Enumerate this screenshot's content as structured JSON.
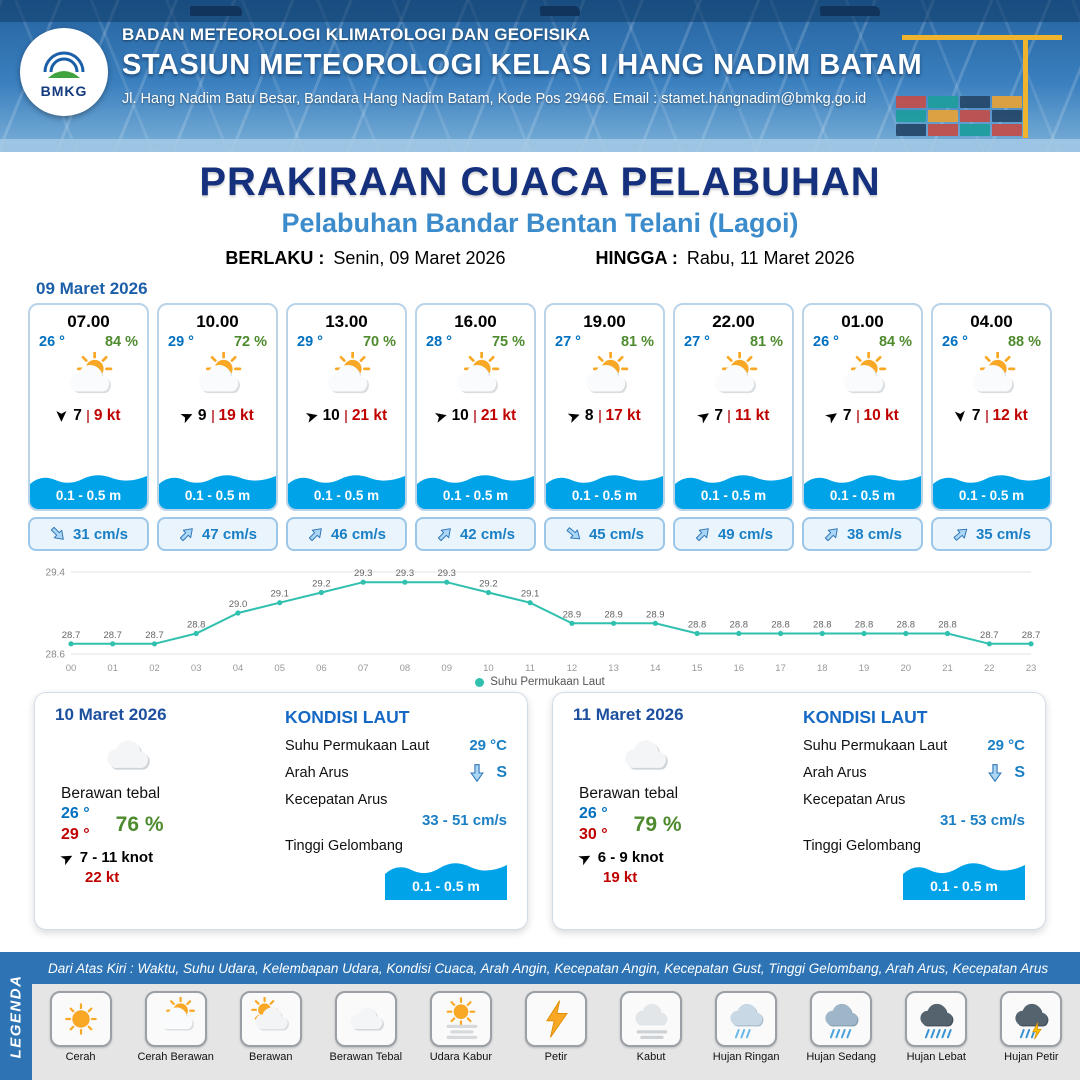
{
  "header": {
    "org": "BADAN METEOROLOGI KLIMATOLOGI DAN GEOFISIKA",
    "station": "STASIUN METEOROLOGI KELAS I HANG NADIM BATAM",
    "address": "Jl. Hang Nadim Batu Besar, Bandara Hang Nadim Batam, Kode Pos 29466. Email : stamet.hangnadim@bmkg.go.id",
    "logo_text": "BMKG"
  },
  "title": {
    "main": "PRAKIRAAN CUACA PELABUHAN",
    "subtitle": "Pelabuhan Bandar Bentan Telani (Lagoi)",
    "berlaku_label": "BERLAKU :",
    "berlaku_value": "Senin, 09 Maret 2026",
    "hingga_label": "HINGGA :",
    "hingga_value": "Rabu, 11 Maret 2026"
  },
  "forecast_date": "09 Maret 2026",
  "forecast_cards": [
    {
      "time": "07.00",
      "temp": "26 °",
      "humidity": "84 %",
      "icon": "sun-cloud",
      "wind": "7",
      "gust": "9 kt",
      "wind_dir": 90,
      "wave": "0.1 - 0.5 m",
      "current": "31 cm/s",
      "current_dir": 45
    },
    {
      "time": "10.00",
      "temp": "29 °",
      "humidity": "72 %",
      "icon": "sun-cloud",
      "wind": "9",
      "gust": "19 kt",
      "wind_dir": -25,
      "wave": "0.1 - 0.5 m",
      "current": "47 cm/s",
      "current_dir": -45
    },
    {
      "time": "13.00",
      "temp": "29 °",
      "humidity": "70 %",
      "icon": "sun-cloud",
      "wind": "10",
      "gust": "21 kt",
      "wind_dir": -15,
      "wave": "0.1 - 0.5 m",
      "current": "46 cm/s",
      "current_dir": -45
    },
    {
      "time": "16.00",
      "temp": "28 °",
      "humidity": "75 %",
      "icon": "sun-cloud",
      "wind": "10",
      "gust": "21 kt",
      "wind_dir": -15,
      "wave": "0.1 - 0.5 m",
      "current": "42 cm/s",
      "current_dir": -45
    },
    {
      "time": "19.00",
      "temp": "27 °",
      "humidity": "81 %",
      "icon": "sun-cloud",
      "wind": "8",
      "gust": "17 kt",
      "wind_dir": -20,
      "wave": "0.1 - 0.5 m",
      "current": "45 cm/s",
      "current_dir": 40
    },
    {
      "time": "22.00",
      "temp": "27 °",
      "humidity": "81 %",
      "icon": "sun-cloud",
      "wind": "7",
      "gust": "11 kt",
      "wind_dir": -35,
      "wave": "0.1 - 0.5 m",
      "current": "49 cm/s",
      "current_dir": -45
    },
    {
      "time": "01.00",
      "temp": "26 °",
      "humidity": "84 %",
      "icon": "sun-cloud",
      "wind": "7",
      "gust": "10 kt",
      "wind_dir": -35,
      "wave": "0.1 - 0.5 m",
      "current": "38 cm/s",
      "current_dir": -45
    },
    {
      "time": "04.00",
      "temp": "26 °",
      "humidity": "88 %",
      "icon": "sun-cloud",
      "wind": "7",
      "gust": "12 kt",
      "wind_dir": 85,
      "wave": "0.1 - 0.5 m",
      "current": "35 cm/s",
      "current_dir": -40
    }
  ],
  "chart_data": {
    "type": "line",
    "title": "Suhu Permukaan Laut",
    "series_label": "Suhu Permukaan Laut",
    "x": [
      "00",
      "01",
      "02",
      "03",
      "04",
      "05",
      "06",
      "07",
      "08",
      "09",
      "10",
      "11",
      "12",
      "13",
      "14",
      "15",
      "16",
      "17",
      "18",
      "19",
      "20",
      "21",
      "22",
      "23"
    ],
    "values": [
      28.7,
      28.7,
      28.7,
      28.8,
      29.0,
      29.1,
      29.2,
      29.3,
      29.3,
      29.3,
      29.2,
      29.1,
      28.9,
      28.9,
      28.9,
      28.8,
      28.8,
      28.8,
      28.8,
      28.8,
      28.8,
      28.8,
      28.7,
      28.7
    ],
    "ylim": [
      28.6,
      29.4
    ],
    "unit": "°C",
    "color": "#2fc0ae",
    "legend_position": "bottom",
    "grid": false
  },
  "sea_labels": {
    "title": "KONDISI LAUT",
    "sst": "Suhu Permukaan Laut",
    "dir": "Arah Arus",
    "speed": "Kecepatan Arus",
    "wave": "Tinggi Gelombang"
  },
  "day_cards": [
    {
      "date": "10 Maret 2026",
      "icon": "cloud",
      "condition": "Berawan tebal",
      "temp_min": "26 °",
      "temp_max": "29 °",
      "humidity": "76 %",
      "wind": "7  - 11 knot",
      "wind_dir": -28,
      "gust": "22 kt",
      "sea": {
        "sst": "29 °C",
        "dir": "S",
        "speed": "33  - 51 cm/s",
        "wave": "0.1 - 0.5 m"
      }
    },
    {
      "date": "11 Maret 2026",
      "icon": "cloud",
      "condition": "Berawan tebal",
      "temp_min": "26 °",
      "temp_max": "30 °",
      "humidity": "79 %",
      "wind": "6  - 9 knot",
      "wind_dir": -28,
      "gust": "19 kt",
      "sea": {
        "sst": "29 °C",
        "dir": "S",
        "speed": "31  - 53 cm/s",
        "wave": "0.1 - 0.5 m"
      }
    }
  ],
  "legend": {
    "sidebar_title": "LEGENDA",
    "note": "Dari Atas Kiri : Waktu, Suhu Udara, Kelembapan Udara, Kondisi Cuaca, Arah Angin, Kecepatan Angin, Kecepatan Gust, Tinggi Gelombang, Arah Arus, Kecepatan Arus",
    "items": [
      {
        "label": "Cerah",
        "icon": "sun"
      },
      {
        "label": "Cerah Berawan",
        "icon": "sun-cloud"
      },
      {
        "label": "Berawan",
        "icon": "cloud-sun"
      },
      {
        "label": "Berawan Tebal",
        "icon": "cloud"
      },
      {
        "label": "Udara Kabur",
        "icon": "haze"
      },
      {
        "label": "Petir",
        "icon": "thunder"
      },
      {
        "label": "Kabut",
        "icon": "fog"
      },
      {
        "label": "Hujan Ringan",
        "icon": "rain-light"
      },
      {
        "label": "Hujan Sedang",
        "icon": "rain-medium"
      },
      {
        "label": "Hujan Lebat",
        "icon": "rain-heavy"
      },
      {
        "label": "Hujan Petir",
        "icon": "storm"
      }
    ]
  },
  "colors": {
    "accent_navy": "#15307c",
    "accent_blue": "#3c8ccc",
    "temp_blue": "#0070c0",
    "humidity_green": "#4e8a2e",
    "gust_red": "#c00000",
    "wave_blue": "#00a2e8",
    "chart_teal": "#2fc0ae",
    "banner_blue": "#2e74b5"
  }
}
